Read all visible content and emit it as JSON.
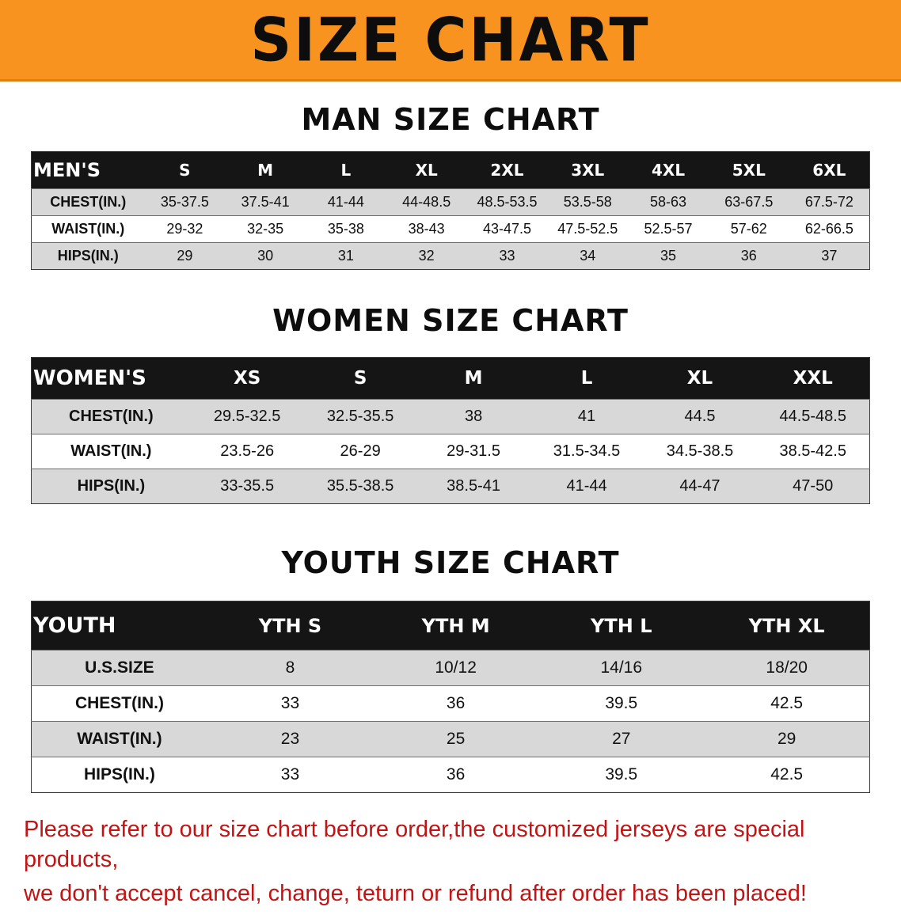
{
  "banner": {
    "title": "SIZE CHART",
    "bg": "#F7931E"
  },
  "sections": [
    {
      "heading": "MAN SIZE CHART",
      "table": {
        "header": [
          "MEN'S",
          "S",
          "M",
          "L",
          "XL",
          "2XL",
          "3XL",
          "4XL",
          "5XL",
          "6XL"
        ],
        "rows": [
          [
            "CHEST(IN.)",
            "35-37.5",
            "37.5-41",
            "41-44",
            "44-48.5",
            "48.5-53.5",
            "53.5-58",
            "58-63",
            "63-67.5",
            "67.5-72"
          ],
          [
            "WAIST(IN.)",
            "29-32",
            "32-35",
            "35-38",
            "38-43",
            "43-47.5",
            "47.5-52.5",
            "52.5-57",
            "57-62",
            "62-66.5"
          ],
          [
            "HIPS(IN.)",
            "29",
            "30",
            "31",
            "32",
            "33",
            "34",
            "35",
            "36",
            "37"
          ]
        ]
      }
    },
    {
      "heading": "WOMEN SIZE CHART",
      "table": {
        "header": [
          "WOMEN'S",
          "XS",
          "S",
          "M",
          "L",
          "XL",
          "XXL"
        ],
        "rows": [
          [
            "CHEST(IN.)",
            "29.5-32.5",
            "32.5-35.5",
            "38",
            "41",
            "44.5",
            "44.5-48.5"
          ],
          [
            "WAIST(IN.)",
            "23.5-26",
            "26-29",
            "29-31.5",
            "31.5-34.5",
            "34.5-38.5",
            "38.5-42.5"
          ],
          [
            "HIPS(IN.)",
            "33-35.5",
            "35.5-38.5",
            "38.5-41",
            "41-44",
            "44-47",
            "47-50"
          ]
        ]
      }
    },
    {
      "heading": "YOUTH SIZE CHART",
      "table": {
        "header": [
          "YOUTH",
          "YTH S",
          "YTH M",
          "YTH L",
          "YTH XL"
        ],
        "rows": [
          [
            "U.S.SIZE",
            "8",
            "10/12",
            "14/16",
            "18/20"
          ],
          [
            "CHEST(IN.)",
            "33",
            "36",
            "39.5",
            "42.5"
          ],
          [
            "WAIST(IN.)",
            "23",
            "25",
            "27",
            "29"
          ],
          [
            "HIPS(IN.)",
            "33",
            "36",
            "39.5",
            "42.5"
          ]
        ]
      }
    }
  ],
  "footer": {
    "line1": "Please refer to our size chart before order,the customized jerseys are special products,",
    "line2": "we don't accept cancel, change, teturn or refund after order has been placed!",
    "color": "#c21414"
  },
  "colors": {
    "banner_orange": "#F7931E",
    "table_header_black": "#151515",
    "row_gray": "#d8d8d8",
    "note_red": "#c21414"
  }
}
